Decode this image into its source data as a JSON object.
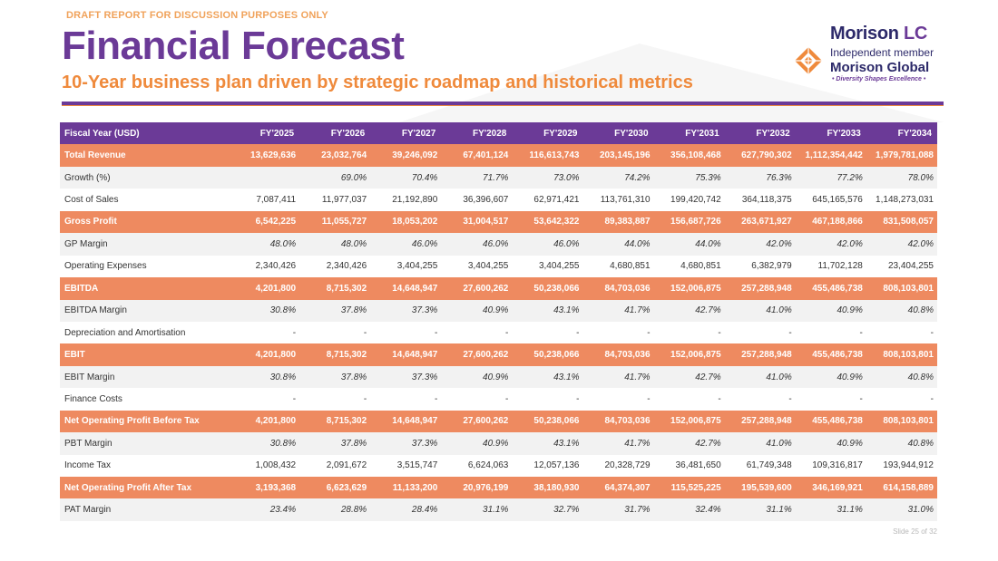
{
  "header": {
    "draft_notice": "DRAFT REPORT FOR DISCUSSION PURPOSES ONLY",
    "title": "Financial Forecast",
    "subtitle": "10-Year business plan driven by strategic roadmap and historical metrics"
  },
  "logo": {
    "name_main": "Morison",
    "name_accent": "LC",
    "member_line": "Independent member",
    "global_line": "Morison Global",
    "tagline": "• Diversity Shapes Excellence •",
    "colors": {
      "navy": "#2d2a6a",
      "purple": "#6b3a97",
      "orange": "#ef8a3c"
    }
  },
  "table": {
    "header_label": "Fiscal Year (USD)",
    "years": [
      "FY'2025",
      "FY'2026",
      "FY'2027",
      "FY'2028",
      "FY'2029",
      "FY'2030",
      "FY'2031",
      "FY'2032",
      "FY'2033",
      "FY'2034"
    ],
    "rows": [
      {
        "label": "Total Revenue",
        "style": "hl",
        "values": [
          "13,629,636",
          "23,032,764",
          "39,246,092",
          "67,401,124",
          "116,613,743",
          "203,145,196",
          "356,108,468",
          "627,790,302",
          "1,112,354,442",
          "1,979,781,088"
        ]
      },
      {
        "label": "Growth (%)",
        "style": "pct",
        "values": [
          "",
          "69.0%",
          "70.4%",
          "71.7%",
          "73.0%",
          "74.2%",
          "75.3%",
          "76.3%",
          "77.2%",
          "78.0%"
        ]
      },
      {
        "label": "Cost of Sales",
        "style": "plain",
        "values": [
          "7,087,411",
          "11,977,037",
          "21,192,890",
          "36,396,607",
          "62,971,421",
          "113,761,310",
          "199,420,742",
          "364,118,375",
          "645,165,576",
          "1,148,273,031"
        ]
      },
      {
        "label": "Gross Profit",
        "style": "hl",
        "values": [
          "6,542,225",
          "11,055,727",
          "18,053,202",
          "31,004,517",
          "53,642,322",
          "89,383,887",
          "156,687,726",
          "263,671,927",
          "467,188,866",
          "831,508,057"
        ]
      },
      {
        "label": "GP Margin",
        "style": "pct",
        "values": [
          "48.0%",
          "48.0%",
          "46.0%",
          "46.0%",
          "46.0%",
          "44.0%",
          "44.0%",
          "42.0%",
          "42.0%",
          "42.0%"
        ]
      },
      {
        "label": "Operating Expenses",
        "style": "plain",
        "values": [
          "2,340,426",
          "2,340,426",
          "3,404,255",
          "3,404,255",
          "3,404,255",
          "4,680,851",
          "4,680,851",
          "6,382,979",
          "11,702,128",
          "23,404,255"
        ]
      },
      {
        "label": "EBITDA",
        "style": "hl",
        "values": [
          "4,201,800",
          "8,715,302",
          "14,648,947",
          "27,600,262",
          "50,238,066",
          "84,703,036",
          "152,006,875",
          "257,288,948",
          "455,486,738",
          "808,103,801"
        ]
      },
      {
        "label": "EBITDA Margin",
        "style": "pct",
        "values": [
          "30.8%",
          "37.8%",
          "37.3%",
          "40.9%",
          "43.1%",
          "41.7%",
          "42.7%",
          "41.0%",
          "40.9%",
          "40.8%"
        ]
      },
      {
        "label": "Depreciation and Amortisation",
        "style": "plain",
        "values": [
          "-",
          "-",
          "-",
          "-",
          "-",
          "-",
          "-",
          "-",
          "-",
          "-"
        ]
      },
      {
        "label": "EBIT",
        "style": "hl",
        "values": [
          "4,201,800",
          "8,715,302",
          "14,648,947",
          "27,600,262",
          "50,238,066",
          "84,703,036",
          "152,006,875",
          "257,288,948",
          "455,486,738",
          "808,103,801"
        ]
      },
      {
        "label": "EBIT Margin",
        "style": "pct",
        "values": [
          "30.8%",
          "37.8%",
          "37.3%",
          "40.9%",
          "43.1%",
          "41.7%",
          "42.7%",
          "41.0%",
          "40.9%",
          "40.8%"
        ]
      },
      {
        "label": "Finance Costs",
        "style": "plain",
        "values": [
          "-",
          "-",
          "-",
          "-",
          "-",
          "-",
          "-",
          "-",
          "-",
          "-"
        ]
      },
      {
        "label": "Net Operating Profit Before Tax",
        "style": "hl",
        "values": [
          "4,201,800",
          "8,715,302",
          "14,648,947",
          "27,600,262",
          "50,238,066",
          "84,703,036",
          "152,006,875",
          "257,288,948",
          "455,486,738",
          "808,103,801"
        ]
      },
      {
        "label": "PBT Margin",
        "style": "pct",
        "values": [
          "30.8%",
          "37.8%",
          "37.3%",
          "40.9%",
          "43.1%",
          "41.7%",
          "42.7%",
          "41.0%",
          "40.9%",
          "40.8%"
        ]
      },
      {
        "label": "Income Tax",
        "style": "plain",
        "values": [
          "1,008,432",
          "2,091,672",
          "3,515,747",
          "6,624,063",
          "12,057,136",
          "20,328,729",
          "36,481,650",
          "61,749,348",
          "109,316,817",
          "193,944,912"
        ]
      },
      {
        "label": "Net Operating Profit After Tax",
        "style": "hl",
        "values": [
          "3,193,368",
          "6,623,629",
          "11,133,200",
          "20,976,199",
          "38,180,930",
          "64,374,307",
          "115,525,225",
          "195,539,600",
          "346,169,921",
          "614,158,889"
        ]
      },
      {
        "label": "PAT Margin",
        "style": "pct",
        "values": [
          "23.4%",
          "28.8%",
          "28.4%",
          "31.1%",
          "32.7%",
          "31.7%",
          "32.4%",
          "31.1%",
          "31.1%",
          "31.0%"
        ]
      }
    ]
  },
  "footer": {
    "slide_number": "Slide 25 of 32"
  },
  "colors": {
    "purple": "#6b3a97",
    "orange": "#ef8a3c",
    "row_highlight": "#ee8a60",
    "row_stripe": "#f2f2f2"
  }
}
